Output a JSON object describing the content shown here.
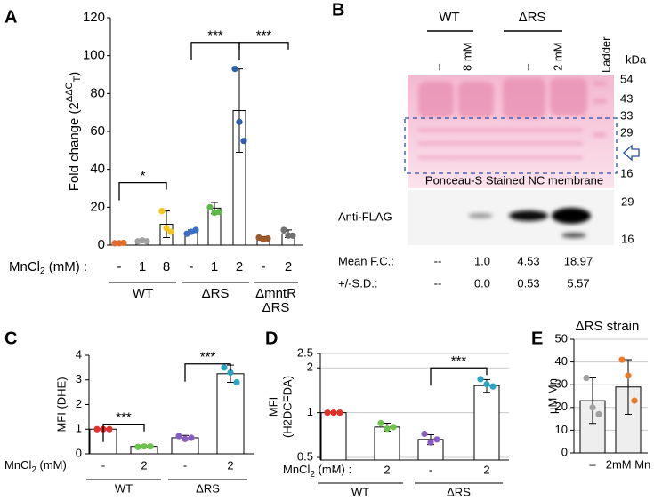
{
  "chart_data": [
    {
      "type": "bar",
      "panel": "A",
      "ylabel": [
        "Fold change (2",
        "ΔΔC",
        "T",
        ")"
      ],
      "xlabel": [
        "MnCl",
        "2",
        " (mM) :"
      ],
      "groups": [
        {
          "name": [
            "WT"
          ],
          "categories": [
            "-",
            "1",
            "8"
          ]
        },
        {
          "name": [
            "ΔRS"
          ],
          "categories": [
            "-",
            "1",
            "2"
          ]
        },
        {
          "name": [
            "ΔmntR",
            "ΔRS"
          ],
          "categories": [
            "-",
            "2"
          ]
        }
      ],
      "values": [
        1,
        2.2,
        11,
        7,
        19.5,
        71,
        3.5,
        6
      ],
      "errors": [
        0.3,
        0.5,
        7,
        1,
        3,
        22,
        1,
        2
      ],
      "points": [
        [
          1,
          1,
          1.2
        ],
        [
          2,
          2.5,
          2
        ],
        [
          18,
          9,
          7
        ],
        [
          6,
          7,
          8
        ],
        [
          20,
          17,
          17.5
        ],
        [
          93,
          65,
          55
        ],
        [
          4,
          3,
          3.5
        ],
        [
          8,
          5,
          5
        ]
      ],
      "colors": [
        "#e46c2a",
        "#a0a0a0",
        "#f5c518",
        "#3a6fc4",
        "#5cb84a",
        "#2e5faa",
        "#9c5a2a",
        "#707070"
      ],
      "bar_color": "#ffffff",
      "ylim": [
        0,
        120
      ],
      "yticks": [
        0,
        20,
        40,
        60,
        80,
        100,
        120
      ],
      "grid": false,
      "log_scale": false,
      "significance": [
        {
          "label": "*",
          "between": [
            0,
            2
          ],
          "level": 33
        },
        {
          "label": "***",
          "between": [
            3,
            5
          ],
          "level": 107
        },
        {
          "label": "***",
          "between": [
            5,
            7
          ],
          "level": 107
        }
      ]
    },
    {
      "type": "bar",
      "panel": "C",
      "ylabel": [
        "MFI (DHE)"
      ],
      "xlabel": [
        "MnCl",
        "2",
        " (mM)"
      ],
      "groups": [
        {
          "name": [
            "WT"
          ],
          "categories": [
            "-",
            "2"
          ]
        },
        {
          "name": [
            "ΔRS"
          ],
          "categories": [
            "-",
            "2"
          ]
        }
      ],
      "values": [
        1,
        0.3,
        0.65,
        3.25
      ],
      "errors": [
        0.02,
        0.03,
        0.1,
        0.35
      ],
      "points": [
        [
          1,
          1,
          1
        ],
        [
          0.28,
          0.3,
          0.3
        ],
        [
          0.72,
          0.6,
          0.65
        ],
        [
          3.5,
          3.3,
          2.9
        ]
      ],
      "colors": [
        "#e0302a",
        "#6cc24a",
        "#8a5cc0",
        "#2aa6c4"
      ],
      "bar_color": "#ffffff",
      "ylim": [
        0,
        4
      ],
      "yticks": [
        0,
        1,
        2,
        3,
        4
      ],
      "grid": false,
      "log_scale": false,
      "significance": [
        {
          "label": "***",
          "between": [
            0,
            1
          ],
          "level": 1.2
        },
        {
          "label": "***",
          "between": [
            2,
            3
          ],
          "level": 3.65
        }
      ]
    },
    {
      "type": "bar",
      "panel": "D",
      "ylabel": [
        "MFI",
        "(H2DCFDA)"
      ],
      "xlabel": [
        "MnCl",
        "2",
        " (mM) :"
      ],
      "groups": [
        {
          "name": [
            "WT"
          ],
          "categories": [
            "-",
            "2"
          ]
        },
        {
          "name": [
            "ΔRS"
          ],
          "categories": [
            "-",
            "2"
          ]
        }
      ],
      "values": [
        1,
        0.8,
        0.66,
        1.52
      ],
      "errors": [
        0,
        0.05,
        0.05,
        0.15
      ],
      "points": [
        [
          1,
          1,
          1
        ],
        [
          0.85,
          0.78,
          0.8
        ],
        [
          0.72,
          0.63,
          0.66
        ],
        [
          1.68,
          1.55,
          1.5
        ]
      ],
      "colors": [
        "#e0302a",
        "#6cc24a",
        "#8a5cc0",
        "#2aa6c4"
      ],
      "bar_color": "#ffffff",
      "ylim": [
        0.48,
        2.5
      ],
      "yticks": [
        0.5,
        1,
        2,
        2.5
      ],
      "grid": true,
      "log_scale": true,
      "significance": [
        {
          "label": "***",
          "between": [
            2,
            3
          ],
          "level": 2
        }
      ]
    },
    {
      "type": "bar",
      "panel": "E",
      "title": "ΔRS strain",
      "ylabel": [
        "µM Mn"
      ],
      "groups": [
        {
          "name": [],
          "categories": [
            "–",
            "2mM Mn"
          ]
        }
      ],
      "values": [
        23,
        29
      ],
      "errors": [
        10,
        12
      ],
      "points": [
        [
          33,
          20,
          17
        ],
        [
          41,
          34,
          23
        ]
      ],
      "colors": [
        "#a0a0a0",
        "#e87a2a"
      ],
      "bar_color": "#eeeeee",
      "ylim": [
        0,
        50
      ],
      "yticks": [
        0,
        10,
        20,
        30,
        40,
        50
      ],
      "grid": true,
      "log_scale": false,
      "significance": []
    }
  ],
  "blot": {
    "panel": "B",
    "groups": [
      {
        "name": "WT",
        "lanes": [
          "--",
          "8 mM"
        ]
      },
      {
        "name": "ΔRS",
        "lanes": [
          "--",
          "2 mM"
        ]
      }
    ],
    "ladder": "Ladder",
    "kda_label": "kDa",
    "markers": [
      54,
      43,
      33,
      29,
      16
    ],
    "membrane_label": "Ponceau-S Stained NC membrane",
    "antibody": "Anti-FLAG",
    "flag_markers": [
      29,
      16
    ],
    "rows": [
      {
        "label": "Mean F.C.:",
        "values": [
          "--",
          "1.0",
          "4.53",
          "18.97"
        ]
      },
      {
        "label": "+/-S.D.:",
        "values": [
          "--",
          "0.0",
          "0.53",
          "5.57"
        ]
      }
    ]
  }
}
